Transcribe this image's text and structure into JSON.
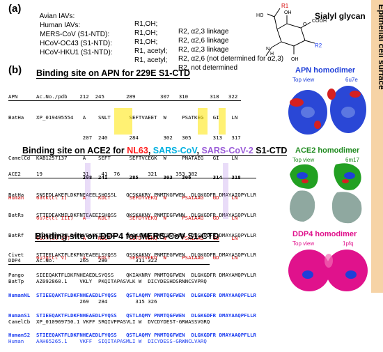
{
  "panel_a": {
    "label": "(a)",
    "rows": [
      {
        "name": "Avian IAVs:",
        "r1": "R1,OH;",
        "r2": "R2, α2,3 linkage"
      },
      {
        "name": "Human IAVs:",
        "r1": "R1,OH;",
        "r2": "R2, α2,6 linkage"
      },
      {
        "name": "MERS-CoV (S1-NTD):",
        "r1": "R1,OH;",
        "r2": "R2, α2,3 linkage"
      },
      {
        "name": "HCoV-OC43 (S1-NTD):",
        "r1": "R1, acetyl;",
        "r2": "R2, α2,6 (not determined for α2,3)"
      },
      {
        "name": "HCoV-HKU1 (S1-NTD):",
        "r1": "R1, acetyl;",
        "r2": "R2, not determined"
      }
    ],
    "glycan_title": "Sialyl glycan",
    "glycan_labels": {
      "r1": "R1",
      "r2": "R2",
      "o": "O",
      "cooh": "COOH",
      "h": "H",
      "n": "N",
      "oh": "OH",
      "ho": "HO"
    }
  },
  "side_label": "Epithelial cell surface",
  "panel_b": {
    "label": "(b)",
    "apn": {
      "heading": "Binding site on APN for 229E S1-CTD",
      "header": "APN      Ac.No./pdb    212  245       289        307   310       318   322",
      "rows": [
        "BatHa    XP_019495554   A    SNLT      SEFTVAEET  W     PSATKEG   GI    LN",
        "                        207  240       284        302   305       313   317",
        "CamelCd  KAB1257137     A    SEFT      SEFTVCEGK  W     PNATAEG   GI    LN",
        "                        208  241       285        303   306       314   318",
        "Human    6atk(cl I)     A    KDLT      SEFDYVEKQ  W     PSAIAAG   GD    LN",
        "         6u7e(cl III)   A    KDLT      SEFDYVEKQ  W     PSAIAAG   GD    LN",
        "         6u7f(cl IV)    A    KDLT      SEFDYVEKQ  W     PSAIAAG   GD    LN",
        "         6u7g(cl V)     A    KDLT      SEFDYVEKQ  W     PSAIAAG   GD    LN"
      ]
    },
    "ace2": {
      "heading_prefix": "Binding site on ACE2 for ",
      "heading_nl63": "NL63",
      "heading_sars1": "SARS-CoV",
      "heading_sars2": "SARS-CoV-2",
      "heading_suffix": " S1-CTD",
      "sep1": ", ",
      "sep2": ", ",
      "header": "ACE2     19             31    41  76         321      353 382",
      "rows": [
        "BatHa    SNSEDLAKEFLDKFNEAEELSHQSSL   QCSKAKRY PNMTKGFWEN  DLGKGDFR DMAYAIQPYLLR",
        "BatRs    STTEDEAKMFLDKFNTEAEEISHQSS   QKSKAKNY PNMTEGFWNN  DLGKGDFR DMAYASQPYLLR",
        "BatRf    STIEEQAKTFLDKFNVEAEEISHQSS   QKSKARNY PNMTEGFWNN  DLGKGDFR DMAYASQPYLLR",
        "Civet    STTEELAKTFLEKFNYEAEELSYQSS   QSSKAKNY PNMTEGFWEN  DLGKGDFR DMAYASQPYLLR",
        "Pango    SIEEQAKTFLDKFNHEAEDLSYQSS    QKIAKNRY PNMTQGFWEN  DLGKGDFR DMAYAMQPYLLR",
        "HumanNL  STIEEQAKTFLDKFNHEAEDLFYQSS   QSTLAQMY PNMTQGFWEN  DLGKGDFR DMAYAAQPFLLR",
        "HumanS1  STIEEQAKTFLDKFNHEAEDLFYQSS   QSTLAQMY PNMTQGFWEN  DLGKGDFR DMAYAAQPFLLR",
        "HumanS2  STIEEQAKTFLDKFNHEAEDLFYQSS   QSTLAQMY PNMTQGFWEN  DLGKGDFR DMAYAAQPFLLR"
      ]
    },
    "ddp4": {
      "heading": "Binding site on DDP4 for MERS-CoV S1-CTD",
      "header": "DDP4     Ac.No.        265   280         311 322",
      "rows": [
        "BatTp    AZ092860.1    VKLY  PKQITAPASVLK W  DICYDESHDSRNNCSVPRQ",
        "                       269   284         315 326",
        "CamelCb  XP_010969750.1 VKFF SRQIVPPASVLI W  DVCDYDEST-GRWASSVGRQ",
        "Human    AAH65265.1    VKFF  SIQITAPASMLI W  DICYDESS-GRWNCLVARQ"
      ]
    },
    "structures": [
      {
        "title": "APN homodimer",
        "subtitle": "Top view",
        "code": "6u7e"
      },
      {
        "title": "ACE2 homodimer",
        "subtitle": "Top view",
        "code": "6m17"
      },
      {
        "title": "DDP4 homodimer",
        "subtitle": "Top view",
        "code": "1pfq"
      }
    ]
  },
  "colors": {
    "apn": "#1f3fd8",
    "ace2": "#1f8a1f",
    "ddp4": "#e0128c",
    "nl63": "#ff1a1a",
    "sars1": "#00b0e0",
    "sars2": "#9a5bd8",
    "side_bar": "#f6d3a6"
  }
}
